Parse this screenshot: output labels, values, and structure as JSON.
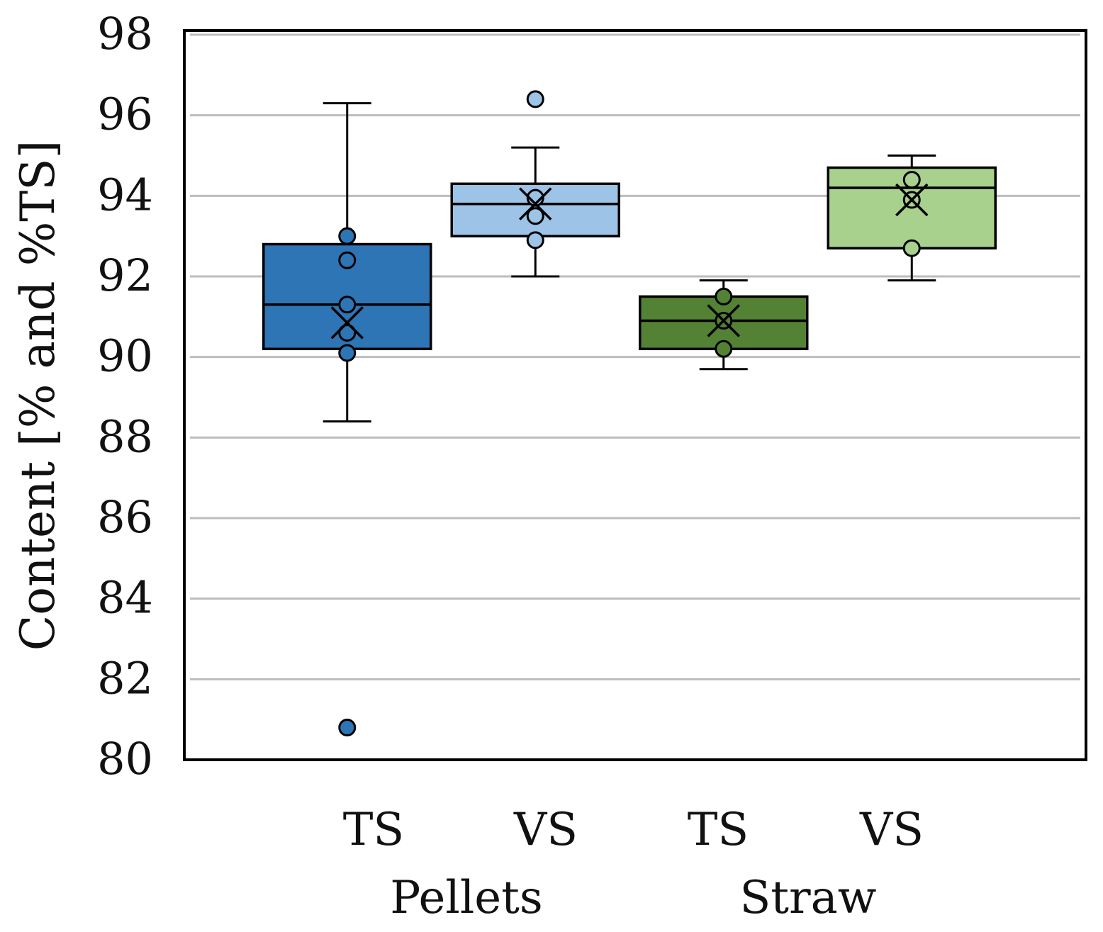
{
  "chart_data": {
    "type": "box",
    "ylabel": "Content [% and %TS]",
    "ylim": [
      80,
      98
    ],
    "yticks": [
      80,
      82,
      84,
      86,
      88,
      90,
      92,
      94,
      96,
      98
    ],
    "grid": true,
    "groups": [
      {
        "label": "Pellets",
        "categories": [
          0,
          1
        ]
      },
      {
        "label": "Straw",
        "categories": [
          2,
          3
        ]
      }
    ],
    "series": [
      {
        "name": "Pellets TS",
        "category": "TS",
        "group": "Pellets",
        "color": "#2e75b6",
        "whisker_low": 88.4,
        "q1": 90.2,
        "median": 91.3,
        "q3": 92.8,
        "whisker_high": 96.3,
        "mean": 90.85,
        "points": [
          93.0,
          92.4,
          91.3,
          90.6,
          90.1,
          80.8
        ]
      },
      {
        "name": "Pellets VS",
        "category": "VS",
        "group": "Pellets",
        "color": "#9dc3e6",
        "whisker_low": 92.0,
        "q1": 93.0,
        "median": 93.8,
        "q3": 94.3,
        "whisker_high": 95.2,
        "mean": 93.8,
        "points": [
          96.4,
          93.95,
          93.5,
          92.9
        ]
      },
      {
        "name": "Straw TS",
        "category": "TS",
        "group": "Straw",
        "color": "#548235",
        "whisker_low": 89.7,
        "q1": 90.2,
        "median": 90.9,
        "q3": 91.5,
        "whisker_high": 91.9,
        "mean": 90.9,
        "points": [
          91.5,
          90.9,
          90.2
        ]
      },
      {
        "name": "Straw VS",
        "category": "VS",
        "group": "Straw",
        "color": "#a9d18e",
        "whisker_low": 91.9,
        "q1": 92.7,
        "median": 94.2,
        "q3": 94.7,
        "whisker_high": 95.0,
        "mean": 93.9,
        "points": [
          94.4,
          93.9,
          92.7
        ]
      }
    ]
  }
}
